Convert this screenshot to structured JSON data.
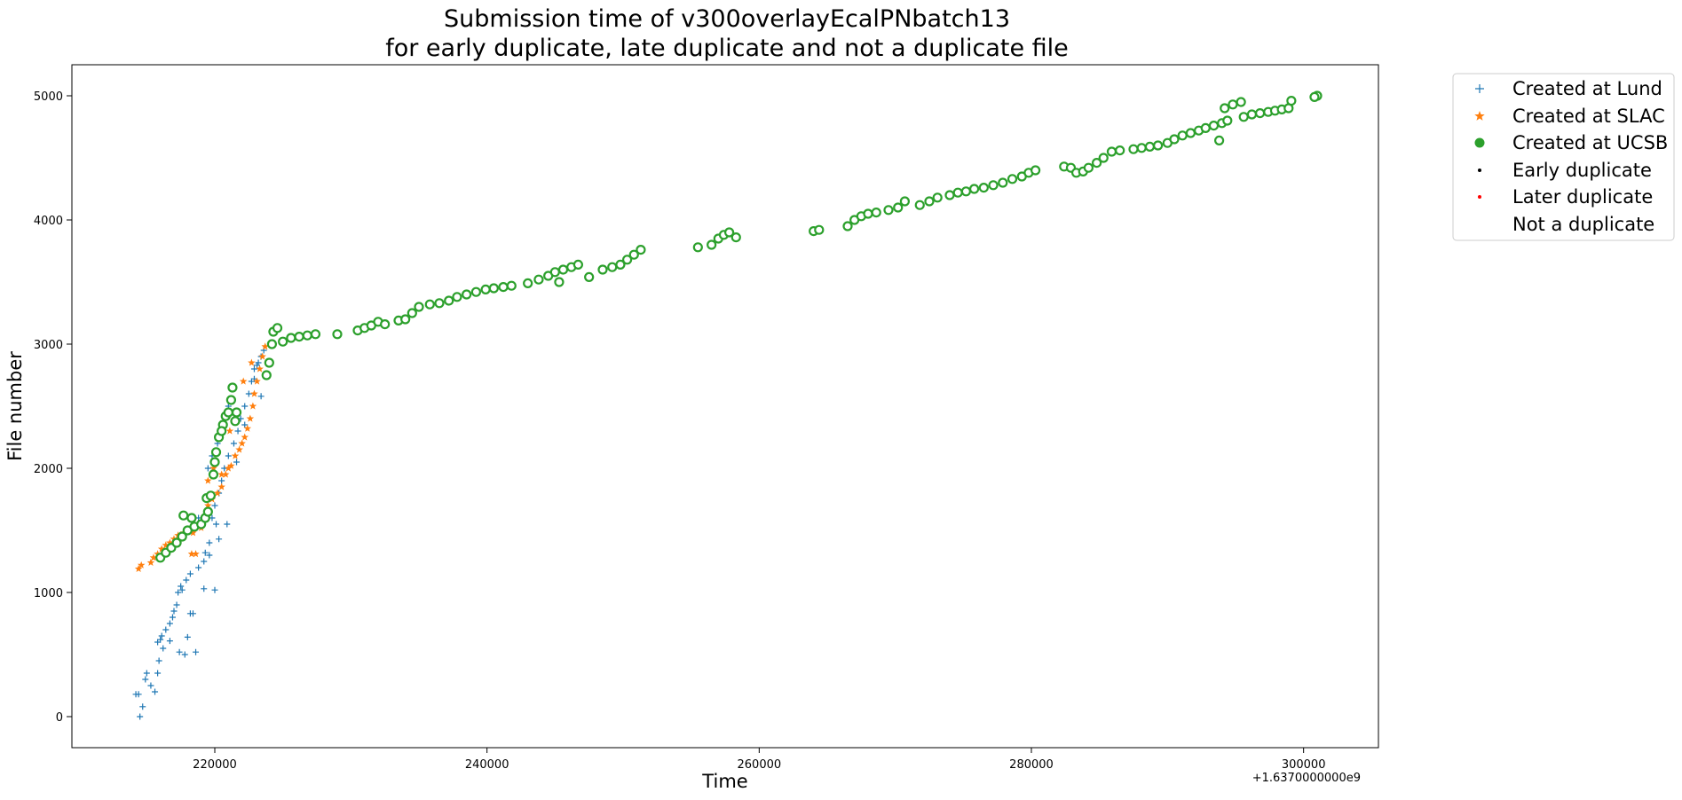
{
  "chart_data": {
    "type": "scatter",
    "title": [
      "Submission time of v300overlayEcalPNbatch13",
      "for early duplicate, late duplicate and not a duplicate file"
    ],
    "xlabel": "Time",
    "ylabel": "File number",
    "x_offset_label": "+1.6370000000e9",
    "xlim": [
      209500,
      305500
    ],
    "ylim": [
      -250,
      5250
    ],
    "x_ticks": [
      220000,
      240000,
      260000,
      280000,
      300000
    ],
    "x_tick_labels": [
      "220000",
      "240000",
      "260000",
      "280000",
      "300000"
    ],
    "y_ticks": [
      0,
      1000,
      2000,
      3000,
      4000,
      5000
    ],
    "y_tick_labels": [
      "0",
      "1000",
      "2000",
      "3000",
      "4000",
      "5000"
    ],
    "grid": false,
    "legend_position": "outside top-right",
    "legend": [
      {
        "label": "Created at Lund",
        "marker": "plus",
        "color": "#1f77b4"
      },
      {
        "label": "Created at SLAC",
        "marker": "star",
        "color": "#ff7f0e"
      },
      {
        "label": "Created at UCSB",
        "marker": "circle",
        "color": "#2ca02c"
      },
      {
        "label": "Early duplicate",
        "marker": "dot",
        "color": "#000000"
      },
      {
        "label": "Later duplicate",
        "marker": "dot",
        "color": "#ff0000"
      },
      {
        "label": "Not a duplicate",
        "marker": "none",
        "color": "#ffffff"
      }
    ],
    "series": [
      {
        "name": "Created at Lund",
        "color": "#1f77b4",
        "marker": "plus",
        "points": [
          [
            214500,
            0
          ],
          [
            214700,
            80
          ],
          [
            214400,
            180
          ],
          [
            214900,
            300
          ],
          [
            215000,
            350
          ],
          [
            215300,
            250
          ],
          [
            215600,
            200
          ],
          [
            215800,
            350
          ],
          [
            215900,
            450
          ],
          [
            216200,
            550
          ],
          [
            216100,
            650
          ],
          [
            216400,
            700
          ],
          [
            216700,
            750
          ],
          [
            216900,
            800
          ],
          [
            217000,
            850
          ],
          [
            217200,
            900
          ],
          [
            217300,
            1000
          ],
          [
            217500,
            1050
          ],
          [
            217900,
            1100
          ],
          [
            218200,
            1150
          ],
          [
            218800,
            1200
          ],
          [
            219200,
            1250
          ],
          [
            219600,
            1300
          ],
          [
            219600,
            1400
          ],
          [
            219800,
            1600
          ],
          [
            220000,
            1700
          ],
          [
            220300,
            1800
          ],
          [
            220500,
            1900
          ],
          [
            220700,
            2000
          ],
          [
            221000,
            2100
          ],
          [
            221400,
            2200
          ],
          [
            221700,
            2300
          ],
          [
            221900,
            2400
          ],
          [
            222200,
            2500
          ],
          [
            222500,
            2600
          ],
          [
            222700,
            2700
          ],
          [
            222900,
            2800
          ],
          [
            223200,
            2850
          ],
          [
            223400,
            2900
          ],
          [
            223600,
            2950
          ],
          [
            219500,
            2000
          ],
          [
            219800,
            2100
          ],
          [
            220200,
            2200
          ],
          [
            220500,
            2300
          ],
          [
            220800,
            2400
          ],
          [
            221000,
            2500
          ],
          [
            218500,
            1500
          ],
          [
            218800,
            1600
          ],
          [
            220900,
            1550
          ],
          [
            220100,
            1550
          ],
          [
            219300,
            1320
          ],
          [
            217800,
            500
          ],
          [
            217400,
            520
          ],
          [
            218600,
            520
          ],
          [
            219200,
            1030
          ],
          [
            220000,
            1020
          ],
          [
            217600,
            1020
          ],
          [
            218200,
            830
          ],
          [
            218400,
            830
          ],
          [
            215800,
            600
          ],
          [
            216000,
            620
          ],
          [
            214200,
            180
          ],
          [
            223400,
            2580
          ],
          [
            216700,
            610
          ],
          [
            218000,
            640
          ],
          [
            220300,
            1430
          ],
          [
            221600,
            2050
          ],
          [
            222200,
            2350
          ],
          [
            222900,
            2720
          ],
          [
            223100,
            2830
          ]
        ]
      },
      {
        "name": "Created at SLAC",
        "color": "#ff7f0e",
        "marker": "star",
        "points": [
          [
            214400,
            1190
          ],
          [
            214600,
            1220
          ],
          [
            215300,
            1240
          ],
          [
            215500,
            1280
          ],
          [
            215800,
            1310
          ],
          [
            216100,
            1350
          ],
          [
            216400,
            1380
          ],
          [
            216700,
            1400
          ],
          [
            217000,
            1430
          ],
          [
            217300,
            1460
          ],
          [
            217700,
            1480
          ],
          [
            218000,
            1500
          ],
          [
            218400,
            1480
          ],
          [
            218600,
            1310
          ],
          [
            218300,
            1310
          ],
          [
            219000,
            1520
          ],
          [
            219300,
            1600
          ],
          [
            219500,
            1700
          ],
          [
            219800,
            1750
          ],
          [
            220200,
            1800
          ],
          [
            220500,
            1850
          ],
          [
            220800,
            1950
          ],
          [
            221000,
            2000
          ],
          [
            221200,
            2020
          ],
          [
            221500,
            2100
          ],
          [
            221800,
            2150
          ],
          [
            222000,
            2200
          ],
          [
            222200,
            2250
          ],
          [
            222400,
            2320
          ],
          [
            222600,
            2400
          ],
          [
            222800,
            2500
          ],
          [
            222900,
            2600
          ],
          [
            223100,
            2700
          ],
          [
            223300,
            2800
          ],
          [
            223500,
            2900
          ],
          [
            223700,
            2980
          ],
          [
            219900,
            2000
          ],
          [
            219500,
            1900
          ],
          [
            220500,
            1950
          ],
          [
            221100,
            2300
          ],
          [
            222100,
            2700
          ],
          [
            222700,
            2850
          ]
        ]
      },
      {
        "name": "Created at UCSB",
        "color": "#2ca02c",
        "marker": "circle",
        "points": [
          [
            216000,
            1280
          ],
          [
            216400,
            1320
          ],
          [
            216800,
            1360
          ],
          [
            217200,
            1400
          ],
          [
            217600,
            1450
          ],
          [
            218000,
            1500
          ],
          [
            218500,
            1530
          ],
          [
            219000,
            1550
          ],
          [
            219300,
            1600
          ],
          [
            219500,
            1650
          ],
          [
            219400,
            1760
          ],
          [
            219700,
            1780
          ],
          [
            219900,
            1950
          ],
          [
            220000,
            2050
          ],
          [
            220100,
            2130
          ],
          [
            220300,
            2250
          ],
          [
            220600,
            2350
          ],
          [
            220800,
            2420
          ],
          [
            221000,
            2450
          ],
          [
            221200,
            2550
          ],
          [
            221300,
            2650
          ],
          [
            221600,
            2450
          ],
          [
            217700,
            1620
          ],
          [
            218300,
            1600
          ],
          [
            220500,
            2300
          ],
          [
            221500,
            2380
          ],
          [
            223800,
            2750
          ],
          [
            224000,
            2850
          ],
          [
            224200,
            3000
          ],
          [
            224300,
            3100
          ],
          [
            224600,
            3130
          ],
          [
            225000,
            3020
          ],
          [
            225600,
            3050
          ],
          [
            226200,
            3060
          ],
          [
            226800,
            3070
          ],
          [
            227400,
            3080
          ],
          [
            229000,
            3080
          ],
          [
            230500,
            3110
          ],
          [
            231000,
            3130
          ],
          [
            231500,
            3150
          ],
          [
            232000,
            3180
          ],
          [
            232500,
            3160
          ],
          [
            233500,
            3190
          ],
          [
            234000,
            3200
          ],
          [
            234500,
            3250
          ],
          [
            235000,
            3300
          ],
          [
            235800,
            3320
          ],
          [
            236500,
            3330
          ],
          [
            237200,
            3350
          ],
          [
            237800,
            3380
          ],
          [
            238500,
            3400
          ],
          [
            239200,
            3420
          ],
          [
            239900,
            3440
          ],
          [
            240500,
            3450
          ],
          [
            241200,
            3460
          ],
          [
            241800,
            3470
          ],
          [
            243000,
            3490
          ],
          [
            243800,
            3520
          ],
          [
            244500,
            3550
          ],
          [
            245000,
            3580
          ],
          [
            245600,
            3600
          ],
          [
            246200,
            3620
          ],
          [
            246700,
            3640
          ],
          [
            245300,
            3500
          ],
          [
            247500,
            3540
          ],
          [
            248500,
            3600
          ],
          [
            249200,
            3620
          ],
          [
            249800,
            3640
          ],
          [
            250300,
            3680
          ],
          [
            250800,
            3720
          ],
          [
            251300,
            3760
          ],
          [
            255500,
            3780
          ],
          [
            256500,
            3800
          ],
          [
            257000,
            3850
          ],
          [
            257400,
            3880
          ],
          [
            257800,
            3900
          ],
          [
            258300,
            3860
          ],
          [
            264000,
            3910
          ],
          [
            264400,
            3920
          ],
          [
            266500,
            3950
          ],
          [
            267000,
            4000
          ],
          [
            267500,
            4030
          ],
          [
            268000,
            4050
          ],
          [
            268600,
            4060
          ],
          [
            269500,
            4080
          ],
          [
            270200,
            4100
          ],
          [
            270700,
            4150
          ],
          [
            271800,
            4120
          ],
          [
            272500,
            4150
          ],
          [
            273100,
            4180
          ],
          [
            274000,
            4200
          ],
          [
            274600,
            4220
          ],
          [
            275200,
            4230
          ],
          [
            275800,
            4250
          ],
          [
            276500,
            4260
          ],
          [
            277200,
            4280
          ],
          [
            277900,
            4300
          ],
          [
            278600,
            4330
          ],
          [
            279300,
            4350
          ],
          [
            279800,
            4380
          ],
          [
            280300,
            4400
          ],
          [
            282400,
            4430
          ],
          [
            282900,
            4420
          ],
          [
            283300,
            4380
          ],
          [
            283800,
            4390
          ],
          [
            284200,
            4420
          ],
          [
            284800,
            4460
          ],
          [
            285300,
            4500
          ],
          [
            285900,
            4550
          ],
          [
            286500,
            4560
          ],
          [
            287500,
            4570
          ],
          [
            288100,
            4580
          ],
          [
            288700,
            4590
          ],
          [
            289300,
            4600
          ],
          [
            290000,
            4620
          ],
          [
            290500,
            4650
          ],
          [
            291100,
            4680
          ],
          [
            291700,
            4700
          ],
          [
            292300,
            4720
          ],
          [
            292800,
            4740
          ],
          [
            293400,
            4760
          ],
          [
            294000,
            4780
          ],
          [
            294400,
            4800
          ],
          [
            293800,
            4640
          ],
          [
            294200,
            4900
          ],
          [
            294800,
            4930
          ],
          [
            295400,
            4950
          ],
          [
            295600,
            4830
          ],
          [
            296200,
            4850
          ],
          [
            296800,
            4860
          ],
          [
            297400,
            4870
          ],
          [
            297900,
            4880
          ],
          [
            298400,
            4890
          ],
          [
            298900,
            4900
          ],
          [
            299100,
            4960
          ],
          [
            301000,
            5000
          ],
          [
            300800,
            4990
          ]
        ]
      }
    ]
  }
}
